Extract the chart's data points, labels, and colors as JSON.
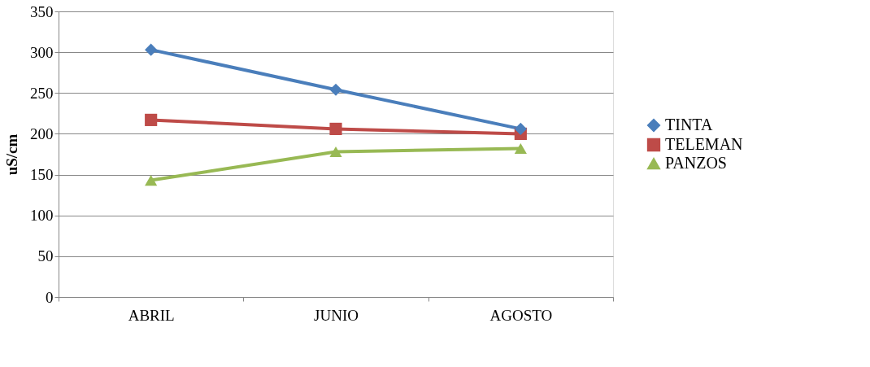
{
  "chart_data": {
    "type": "line",
    "ylabel": "uS/cm",
    "categories": [
      "ABRIL",
      "JUNIO",
      "AGOSTO"
    ],
    "series": [
      {
        "name": "TINTA",
        "color": "#4a7ebb",
        "marker": "diamond",
        "values": [
          303,
          254,
          206
        ]
      },
      {
        "name": "TELEMAN",
        "color": "#be4b48",
        "marker": "square",
        "values": [
          217,
          206,
          200
        ]
      },
      {
        "name": "PANZOS",
        "color": "#98b954",
        "marker": "triangle",
        "values": [
          143,
          178,
          182
        ]
      }
    ],
    "ylim": [
      0,
      350
    ],
    "yticks": [
      0,
      50,
      100,
      150,
      200,
      250,
      300,
      350
    ],
    "grid": "y",
    "legend": "right",
    "line_style": "solid"
  }
}
